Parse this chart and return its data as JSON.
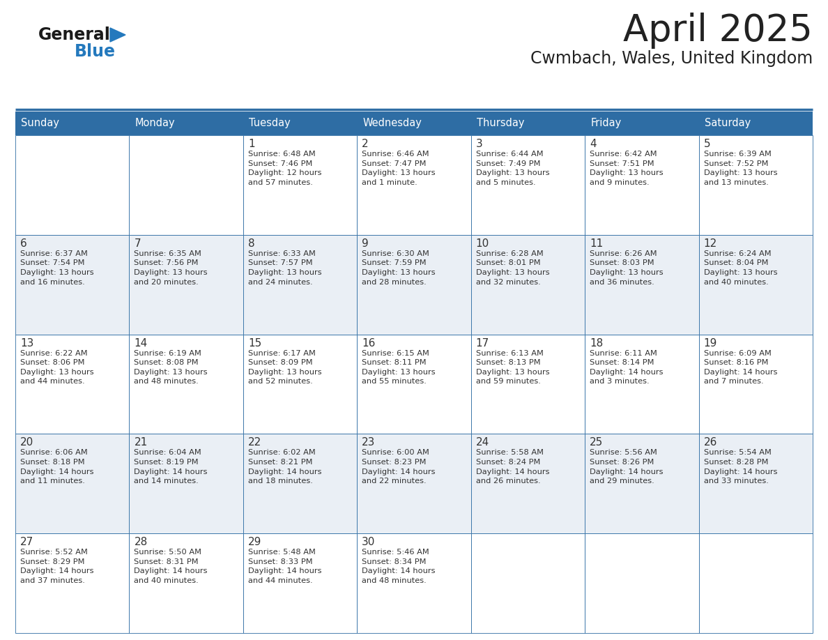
{
  "title": "April 2025",
  "subtitle": "Cwmbach, Wales, United Kingdom",
  "header_bg": "#2E6DA4",
  "header_text_color": "#FFFFFF",
  "cell_bg_odd": "#EAEFF5",
  "cell_bg_even": "#FFFFFF",
  "border_color": "#2E6DA4",
  "text_color": "#333333",
  "day_headers": [
    "Sunday",
    "Monday",
    "Tuesday",
    "Wednesday",
    "Thursday",
    "Friday",
    "Saturday"
  ],
  "weeks": [
    [
      {
        "day": "",
        "info": ""
      },
      {
        "day": "",
        "info": ""
      },
      {
        "day": "1",
        "info": "Sunrise: 6:48 AM\nSunset: 7:46 PM\nDaylight: 12 hours\nand 57 minutes."
      },
      {
        "day": "2",
        "info": "Sunrise: 6:46 AM\nSunset: 7:47 PM\nDaylight: 13 hours\nand 1 minute."
      },
      {
        "day": "3",
        "info": "Sunrise: 6:44 AM\nSunset: 7:49 PM\nDaylight: 13 hours\nand 5 minutes."
      },
      {
        "day": "4",
        "info": "Sunrise: 6:42 AM\nSunset: 7:51 PM\nDaylight: 13 hours\nand 9 minutes."
      },
      {
        "day": "5",
        "info": "Sunrise: 6:39 AM\nSunset: 7:52 PM\nDaylight: 13 hours\nand 13 minutes."
      }
    ],
    [
      {
        "day": "6",
        "info": "Sunrise: 6:37 AM\nSunset: 7:54 PM\nDaylight: 13 hours\nand 16 minutes."
      },
      {
        "day": "7",
        "info": "Sunrise: 6:35 AM\nSunset: 7:56 PM\nDaylight: 13 hours\nand 20 minutes."
      },
      {
        "day": "8",
        "info": "Sunrise: 6:33 AM\nSunset: 7:57 PM\nDaylight: 13 hours\nand 24 minutes."
      },
      {
        "day": "9",
        "info": "Sunrise: 6:30 AM\nSunset: 7:59 PM\nDaylight: 13 hours\nand 28 minutes."
      },
      {
        "day": "10",
        "info": "Sunrise: 6:28 AM\nSunset: 8:01 PM\nDaylight: 13 hours\nand 32 minutes."
      },
      {
        "day": "11",
        "info": "Sunrise: 6:26 AM\nSunset: 8:03 PM\nDaylight: 13 hours\nand 36 minutes."
      },
      {
        "day": "12",
        "info": "Sunrise: 6:24 AM\nSunset: 8:04 PM\nDaylight: 13 hours\nand 40 minutes."
      }
    ],
    [
      {
        "day": "13",
        "info": "Sunrise: 6:22 AM\nSunset: 8:06 PM\nDaylight: 13 hours\nand 44 minutes."
      },
      {
        "day": "14",
        "info": "Sunrise: 6:19 AM\nSunset: 8:08 PM\nDaylight: 13 hours\nand 48 minutes."
      },
      {
        "day": "15",
        "info": "Sunrise: 6:17 AM\nSunset: 8:09 PM\nDaylight: 13 hours\nand 52 minutes."
      },
      {
        "day": "16",
        "info": "Sunrise: 6:15 AM\nSunset: 8:11 PM\nDaylight: 13 hours\nand 55 minutes."
      },
      {
        "day": "17",
        "info": "Sunrise: 6:13 AM\nSunset: 8:13 PM\nDaylight: 13 hours\nand 59 minutes."
      },
      {
        "day": "18",
        "info": "Sunrise: 6:11 AM\nSunset: 8:14 PM\nDaylight: 14 hours\nand 3 minutes."
      },
      {
        "day": "19",
        "info": "Sunrise: 6:09 AM\nSunset: 8:16 PM\nDaylight: 14 hours\nand 7 minutes."
      }
    ],
    [
      {
        "day": "20",
        "info": "Sunrise: 6:06 AM\nSunset: 8:18 PM\nDaylight: 14 hours\nand 11 minutes."
      },
      {
        "day": "21",
        "info": "Sunrise: 6:04 AM\nSunset: 8:19 PM\nDaylight: 14 hours\nand 14 minutes."
      },
      {
        "day": "22",
        "info": "Sunrise: 6:02 AM\nSunset: 8:21 PM\nDaylight: 14 hours\nand 18 minutes."
      },
      {
        "day": "23",
        "info": "Sunrise: 6:00 AM\nSunset: 8:23 PM\nDaylight: 14 hours\nand 22 minutes."
      },
      {
        "day": "24",
        "info": "Sunrise: 5:58 AM\nSunset: 8:24 PM\nDaylight: 14 hours\nand 26 minutes."
      },
      {
        "day": "25",
        "info": "Sunrise: 5:56 AM\nSunset: 8:26 PM\nDaylight: 14 hours\nand 29 minutes."
      },
      {
        "day": "26",
        "info": "Sunrise: 5:54 AM\nSunset: 8:28 PM\nDaylight: 14 hours\nand 33 minutes."
      }
    ],
    [
      {
        "day": "27",
        "info": "Sunrise: 5:52 AM\nSunset: 8:29 PM\nDaylight: 14 hours\nand 37 minutes."
      },
      {
        "day": "28",
        "info": "Sunrise: 5:50 AM\nSunset: 8:31 PM\nDaylight: 14 hours\nand 40 minutes."
      },
      {
        "day": "29",
        "info": "Sunrise: 5:48 AM\nSunset: 8:33 PM\nDaylight: 14 hours\nand 44 minutes."
      },
      {
        "day": "30",
        "info": "Sunrise: 5:46 AM\nSunset: 8:34 PM\nDaylight: 14 hours\nand 48 minutes."
      },
      {
        "day": "",
        "info": ""
      },
      {
        "day": "",
        "info": ""
      },
      {
        "day": "",
        "info": ""
      }
    ]
  ],
  "logo_color_general": "#1a1a1a",
  "logo_color_blue": "#2479BD",
  "logo_triangle_color": "#2479BD",
  "fig_width": 11.88,
  "fig_height": 9.18,
  "dpi": 100
}
